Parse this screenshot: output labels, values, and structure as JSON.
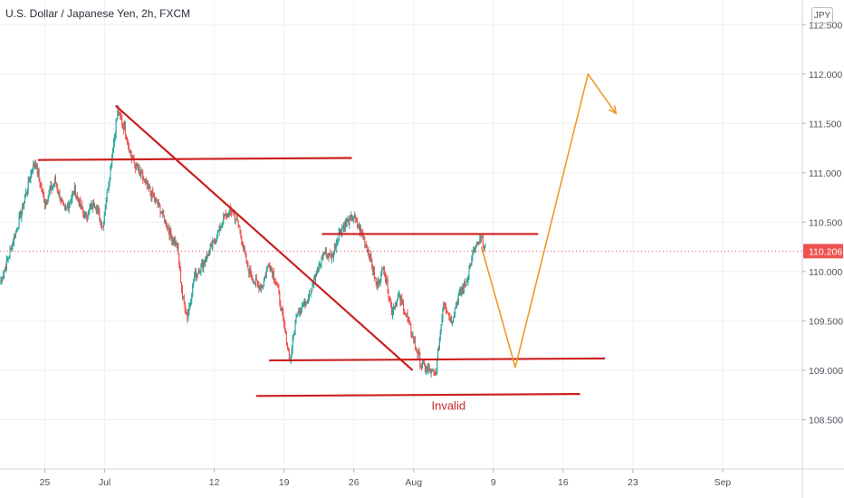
{
  "title": "U.S. Dollar / Japanese Yen, 2h, FXCM",
  "currency": "JPY",
  "chart_data": {
    "type": "candlestick",
    "symbol": "USDJPY",
    "interval": "2h",
    "y_ticks": [
      "112.500",
      "112.000",
      "111.500",
      "111.000",
      "110.500",
      "110.000",
      "109.500",
      "109.000",
      "108.500"
    ],
    "y_tick_values": [
      112.5,
      112.0,
      111.5,
      111.0,
      110.5,
      110.0,
      109.5,
      109.0,
      108.5
    ],
    "x_ticks": [
      "25",
      "Jul",
      "12",
      "19",
      "26",
      "Aug",
      "9",
      "16",
      "23",
      "Sep"
    ],
    "x_tick_days": [
      -6,
      0,
      11,
      18,
      25,
      31,
      39,
      46,
      53,
      62
    ],
    "ylim": [
      108.0,
      112.75
    ],
    "xlim_days": [
      -10.5,
      70
    ],
    "last_price": "110.206",
    "last_price_value": 110.206,
    "up_color": "#26a69a",
    "down_color": "#ef5350",
    "price_path": [
      [
        -10.5,
        109.88
      ],
      [
        -9.5,
        110.2
      ],
      [
        -8.5,
        110.55
      ],
      [
        -7.5,
        110.95
      ],
      [
        -7,
        111.12
      ],
      [
        -6,
        110.7
      ],
      [
        -5,
        110.92
      ],
      [
        -4,
        110.6
      ],
      [
        -3,
        110.82
      ],
      [
        -2,
        110.55
      ],
      [
        -1,
        110.7
      ],
      [
        -0.2,
        110.45
      ],
      [
        0.5,
        111.0
      ],
      [
        1.3,
        111.62
      ],
      [
        2,
        111.45
      ],
      [
        2.7,
        111.15
      ],
      [
        3.5,
        111.0
      ],
      [
        4.5,
        110.82
      ],
      [
        5.5,
        110.65
      ],
      [
        6.5,
        110.4
      ],
      [
        7.3,
        110.25
      ],
      [
        7.8,
        109.75
      ],
      [
        8.3,
        109.55
      ],
      [
        9,
        109.95
      ],
      [
        10,
        110.1
      ],
      [
        11,
        110.3
      ],
      [
        12,
        110.55
      ],
      [
        12.8,
        110.62
      ],
      [
        13.5,
        110.45
      ],
      [
        14.3,
        110.05
      ],
      [
        15,
        109.9
      ],
      [
        15.8,
        109.85
      ],
      [
        16.5,
        110.1
      ],
      [
        17.3,
        109.85
      ],
      [
        18,
        109.45
      ],
      [
        18.6,
        109.1
      ],
      [
        19.3,
        109.6
      ],
      [
        20.2,
        109.7
      ],
      [
        21,
        109.9
      ],
      [
        22,
        110.2
      ],
      [
        22.8,
        110.15
      ],
      [
        23.5,
        110.4
      ],
      [
        24.3,
        110.5
      ],
      [
        25,
        110.55
      ],
      [
        25.7,
        110.4
      ],
      [
        26.5,
        110.2
      ],
      [
        27.3,
        109.85
      ],
      [
        28,
        110.05
      ],
      [
        28.8,
        109.6
      ],
      [
        29.5,
        109.75
      ],
      [
        30.3,
        109.55
      ],
      [
        31,
        109.3
      ],
      [
        31.8,
        109.05
      ],
      [
        32.5,
        109.0
      ],
      [
        33.2,
        108.95
      ],
      [
        34,
        109.7
      ],
      [
        34.8,
        109.5
      ],
      [
        35.5,
        109.75
      ],
      [
        36.3,
        109.9
      ],
      [
        37,
        110.2
      ],
      [
        37.8,
        110.33
      ],
      [
        38.2,
        110.21
      ]
    ],
    "drawings": [
      {
        "kind": "trendline",
        "color": "#cc1f1f",
        "points": [
          [
            -6.7,
            111.13
          ],
          [
            24.8,
            111.15
          ]
        ]
      },
      {
        "kind": "trendline",
        "color": "#cc1f1f",
        "points": [
          [
            1.1,
            111.68
          ],
          [
            30.9,
            109.0
          ]
        ]
      },
      {
        "kind": "trendline",
        "color": "#cc1f1f",
        "points": [
          [
            21.8,
            110.38
          ],
          [
            43.5,
            110.38
          ]
        ]
      },
      {
        "kind": "trendline",
        "color": "#cc1f1f",
        "points": [
          [
            16.5,
            109.1
          ],
          [
            50.2,
            109.12
          ]
        ]
      },
      {
        "kind": "trendline",
        "color": "#cc1f1f",
        "points": [
          [
            15.2,
            108.74
          ],
          [
            47.7,
            108.76
          ]
        ]
      },
      {
        "kind": "projection",
        "color": "#ef9a29",
        "points": [
          [
            37.8,
            110.25
          ],
          [
            41.2,
            109.03
          ],
          [
            48.5,
            112.0
          ],
          [
            51.3,
            111.6
          ]
        ]
      }
    ],
    "annotations": [
      {
        "text": "Invalid",
        "x_day": 34.5,
        "y": 108.6,
        "color": "#c62828"
      }
    ]
  }
}
